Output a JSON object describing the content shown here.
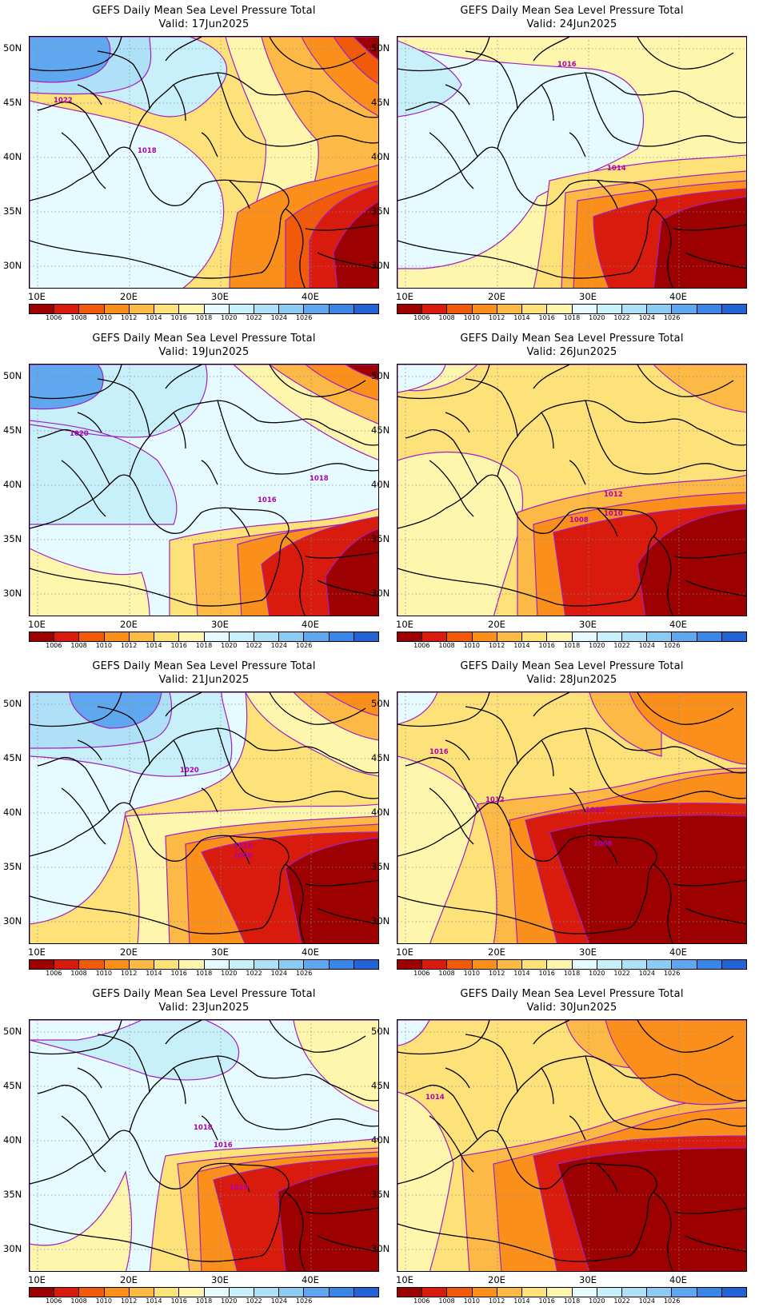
{
  "panel_title": "GEFS Daily Mean Sea Level Pressure Total",
  "lat_labels": [
    "50N",
    "45N",
    "40N",
    "35N",
    "30N"
  ],
  "lon_labels": [
    "10E",
    "20E",
    "30E",
    "40E"
  ],
  "colorbar": {
    "colors": [
      "#9c0000",
      "#d81b0d",
      "#f05a0a",
      "#fb8f1c",
      "#fdb945",
      "#fde27a",
      "#fff6ad",
      "#e5fbff",
      "#c8f0fb",
      "#aee0f7",
      "#8ccbf3",
      "#5fa8ef",
      "#3a86e6",
      "#2264d6"
    ],
    "labels": [
      "1006",
      "1008",
      "1010",
      "1012",
      "1014",
      "1016",
      "1018",
      "1020",
      "1022",
      "1024",
      "1026"
    ]
  },
  "panels": [
    {
      "valid": "Valid: 17Jun2025",
      "contour_labels": [
        "1022",
        "1018"
      ]
    },
    {
      "valid": "Valid: 24Jun2025",
      "contour_labels": [
        "1016",
        "1014"
      ]
    },
    {
      "valid": "Valid: 19Jun2025",
      "contour_labels": [
        "1020",
        "1018",
        "1016"
      ]
    },
    {
      "valid": "Valid: 26Jun2025",
      "contour_labels": [
        "1012",
        "1010",
        "1008"
      ]
    },
    {
      "valid": "Valid: 21Jun2025",
      "contour_labels": [
        "1020",
        "1010",
        "1008"
      ]
    },
    {
      "valid": "Valid: 28Jun2025",
      "contour_labels": [
        "1016",
        "1012",
        "1010",
        "1008"
      ]
    },
    {
      "valid": "Valid: 23Jun2025",
      "contour_labels": [
        "1018",
        "1016",
        "1010"
      ]
    },
    {
      "valid": "Valid: 30Jun2025",
      "contour_labels": [
        "1014"
      ]
    }
  ]
}
